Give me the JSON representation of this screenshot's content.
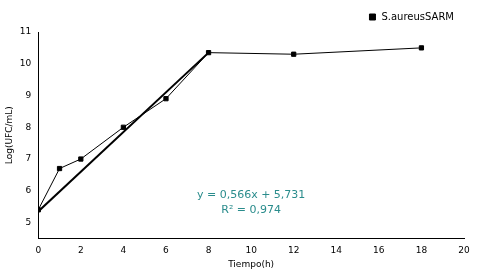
{
  "chart_data": {
    "type": "line",
    "x_label": "Tiempo(h)",
    "y_label": "Log(UFC/mL)",
    "xlim": [
      0,
      20
    ],
    "xticks": [
      0,
      2,
      4,
      6,
      8,
      10,
      12,
      14,
      16,
      18,
      20
    ],
    "ylim": [
      4.5,
      11
    ],
    "yticks": [
      5,
      6,
      7,
      8,
      9,
      10,
      11
    ],
    "grid": false,
    "legend": "upper right",
    "series": [
      {
        "name": "S.aureusSARM",
        "color": "#000000",
        "marker": "square",
        "line_style": "solid",
        "x": [
          0,
          1,
          2,
          4,
          6,
          8,
          12,
          18
        ],
        "values": [
          5.4,
          6.7,
          7.0,
          8.0,
          8.9,
          10.35,
          10.3,
          10.5
        ]
      },
      {
        "color": "#000000",
        "marker": "none",
        "line_style": "solid",
        "x": [
          0,
          8
        ],
        "values": [
          5.35,
          10.35
        ]
      }
    ],
    "annotations": [
      "y = 0,566x + 5,731",
      "R² = 0,974"
    ],
    "annotation_color": "#2a8c8c"
  }
}
